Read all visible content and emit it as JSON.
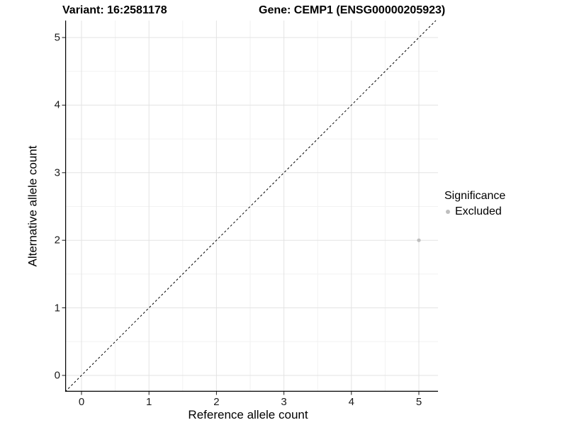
{
  "titles": {
    "variant": "Variant: 16:2581178",
    "gene": "Gene: CEMP1 (ENSG00000205923)"
  },
  "axes": {
    "x_label": "Reference allele count",
    "y_label": "Alternative allele count"
  },
  "legend": {
    "title": "Significance",
    "items": [
      {
        "label": "Excluded",
        "color": "#bebebe"
      }
    ]
  },
  "colors": {
    "point": "#bebebe",
    "grid_major": "#e3e3e3",
    "grid_minor": "#f2f2f2",
    "axis_line": "#000000",
    "tick_mark": "#1a1a1a",
    "identity_line": "#000000"
  },
  "chart_data": {
    "type": "scatter",
    "title": "Variant: 16:2581178   Gene: CEMP1 (ENSG00000205923)",
    "xlabel": "Reference allele count",
    "ylabel": "Alternative allele count",
    "xlim": [
      -0.25,
      5.28
    ],
    "ylim": [
      -0.25,
      5.28
    ],
    "x_ticks": [
      0,
      1,
      2,
      3,
      4,
      5
    ],
    "y_ticks": [
      0,
      1,
      2,
      3,
      4,
      5
    ],
    "minor_grid_step": 0.5,
    "grid": "major+minor",
    "legend_position": "right",
    "legend_title": "Significance",
    "series": [
      {
        "name": "Excluded",
        "color": "#bebebe",
        "points": [
          {
            "x": 5,
            "y": 2
          }
        ]
      }
    ],
    "reference_line": {
      "type": "identity y=x",
      "style": "dashed",
      "color": "#000000"
    }
  }
}
